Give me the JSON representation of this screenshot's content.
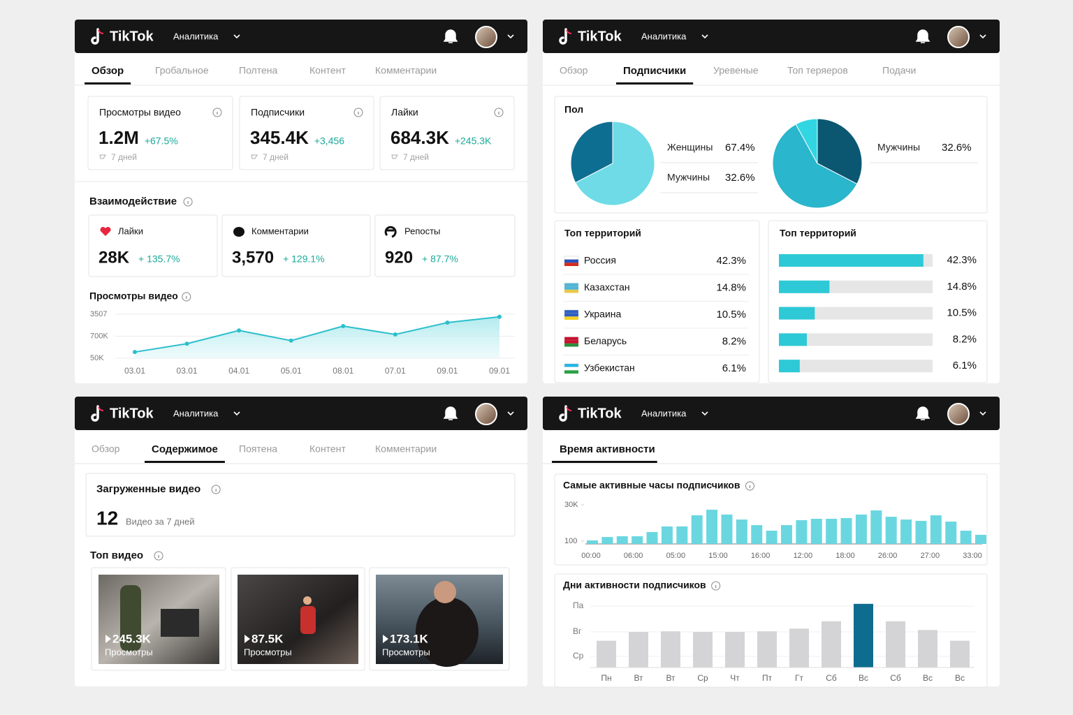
{
  "header": {
    "logo": "TikTok",
    "menu": "Аналитика"
  },
  "overview": {
    "tabs": [
      "Обзор",
      "Гробальное",
      "Полтена",
      "Контент",
      "Комментарии"
    ],
    "active_tab": 0,
    "kpis": [
      {
        "label": "Просмотры видео",
        "value": "1.2M",
        "change": "+67.5%",
        "period": "7 дней"
      },
      {
        "label": "Подписчики",
        "value": "345.4K",
        "change": "+3,456",
        "period": "7 дней"
      },
      {
        "label": "Лайки",
        "value": "684.3K",
        "change": "+245.3K",
        "period": "7 дней"
      }
    ],
    "engagement": {
      "title": "Взаимодействие",
      "items": [
        {
          "label": "Лайки",
          "value": "28K",
          "change": "+ 135.7%"
        },
        {
          "label": "Комментарии",
          "value": "3,570",
          "change": "+ 129.1%"
        },
        {
          "label": "Репосты",
          "value": "920",
          "change": "+ 87.7%"
        }
      ]
    },
    "views_chart": {
      "type": "line",
      "title": "Просмотры видео",
      "y_labels": [
        "3507",
        "700K",
        "50K"
      ],
      "categories": [
        "03.01",
        "03.01",
        "04.01",
        "05.01",
        "08.01",
        "07.01",
        "09.01",
        "09.01"
      ],
      "values": [
        14,
        33,
        63,
        40,
        73,
        54,
        81,
        94
      ],
      "ylim": [
        0,
        100
      ],
      "color": "#2bbfcc"
    }
  },
  "subscribers": {
    "tabs": [
      "Обзор",
      "Подписчики",
      "Уревеные",
      "Топ теряеров",
      "Подачи"
    ],
    "active_tab": 1,
    "gender": {
      "title": "Пол",
      "pies": [
        {
          "type": "pie",
          "slices": [
            {
              "name": "Женщины",
              "value": 67.4,
              "value_label": "67.4%",
              "color": "#6fdbe6"
            },
            {
              "name": "Мужчины",
              "value": 32.6,
              "value_label": "32.6%",
              "color": "#0e6e91"
            }
          ]
        },
        {
          "type": "pie",
          "slices": [
            {
              "name": "Мужчины",
              "value": 32.6,
              "value_label": "32.6%",
              "color": "#0b5772"
            },
            {
              "value": 59.4,
              "color": "#2ab6cc"
            },
            {
              "value": 8,
              "color": "#31d6e2"
            }
          ]
        }
      ]
    },
    "territories": {
      "title": "Топ территорий",
      "items": [
        {
          "name": "Россия",
          "value": 42.3,
          "value_label": "42.3%"
        },
        {
          "name": "Казахстан",
          "value": 14.8,
          "value_label": "14.8%"
        },
        {
          "name": "Украина",
          "value": 10.5,
          "value_label": "10.5%"
        },
        {
          "name": "Беларусь",
          "value": 8.2,
          "value_label": "8.2%"
        },
        {
          "name": "Узбекистан",
          "value": 6.1,
          "value_label": "6.1%"
        }
      ]
    },
    "territory_bars": {
      "type": "bar",
      "title": "Топ территорий",
      "xlim": [
        0,
        45
      ],
      "color": "#2ec9d6"
    }
  },
  "content": {
    "tabs": [
      "Обзор",
      "Содержимое",
      "Поятена",
      "Контент",
      "Комментарии"
    ],
    "active_tab": 1,
    "uploads": {
      "title": "Загруженные видео",
      "count": "12",
      "caption": "Видео за 7 дней"
    },
    "top_title": "Топ видео",
    "videos": [
      {
        "views": "245.3K",
        "label": "Просмотры"
      },
      {
        "views": "87.5K",
        "label": "Просмотры"
      },
      {
        "views": "173.1K",
        "label": "Просмотры"
      }
    ]
  },
  "activity": {
    "tab": "Время активности",
    "hours_chart": {
      "type": "bar",
      "title": "Самые активные часы подписчиков",
      "x_labels": [
        "00:00",
        "06:00",
        "05:00",
        "15:00",
        "16:00",
        "12:00",
        "18:00",
        "26:00",
        "27:00",
        "33:00"
      ],
      "values": [
        700,
        3500,
        4100,
        4100,
        7600,
        12200,
        12200,
        21400,
        26000,
        22000,
        17900,
        13300,
        8700,
        13300,
        17400,
        18500,
        18500,
        19100,
        22000,
        25400,
        20200,
        17900,
        16800,
        21400,
        16200,
        8700,
        5300
      ],
      "yticks": [
        {
          "value": 100,
          "label": "100"
        },
        {
          "value": 30000,
          "label": "30K"
        }
      ],
      "ylim": [
        100,
        30000
      ],
      "color": "#6ad7e0"
    },
    "days_chart": {
      "type": "bar",
      "title": "Дни активности подписчиков",
      "y_labels": [
        "Па",
        "Вг",
        "Ср"
      ],
      "categories": [
        "Пн",
        "Вт",
        "Вт",
        "Ср",
        "Чт",
        "Пт",
        "Гт",
        "Сб",
        "Вс",
        "Сб",
        "Вс",
        "Вс"
      ],
      "values": [
        40,
        53,
        54,
        53,
        53,
        54,
        58,
        69,
        95,
        69,
        56,
        40
      ],
      "ylim": [
        0,
        100
      ],
      "color": "#d4d4d6",
      "highlight_index": 8,
      "highlight_color": "#0e6c8e"
    }
  }
}
